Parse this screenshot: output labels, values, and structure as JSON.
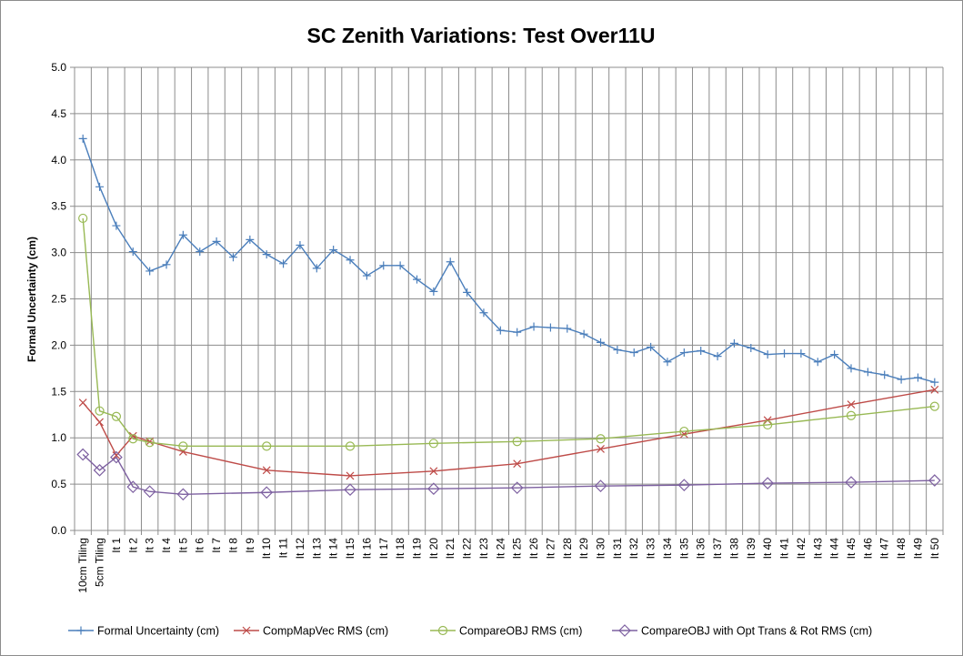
{
  "chart_data": {
    "type": "line",
    "title": "SC Zenith Variations: Test Over11U",
    "xlabel": "",
    "ylabel": "Formal Uncertainty (cm)",
    "ylim": [
      0,
      5
    ],
    "yticks": [
      "0.0",
      "0.5",
      "1.0",
      "1.5",
      "2.0",
      "2.5",
      "3.0",
      "3.5",
      "4.0",
      "4.5",
      "5.0"
    ],
    "grid": true,
    "legend_position": "bottom",
    "categories": [
      "10cm Tiling",
      "5cm Tiling",
      "It 1",
      "It 2",
      "It 3",
      "It 4",
      "It 5",
      "It 6",
      "It 7",
      "It 8",
      "It 9",
      "It 10",
      "It 11",
      "It 12",
      "It 13",
      "It 14",
      "It 15",
      "It 16",
      "It 17",
      "It 18",
      "It 19",
      "It 20",
      "It 21",
      "It 22",
      "It 23",
      "It 24",
      "It 25",
      "It 26",
      "It 27",
      "It 28",
      "It 29",
      "It 30",
      "It 31",
      "It 32",
      "It 33",
      "It 34",
      "It 35",
      "It 36",
      "It 37",
      "It 38",
      "It 39",
      "It 40",
      "It 41",
      "It 42",
      "It 43",
      "It 44",
      "It 45",
      "It 46",
      "It 47",
      "It 48",
      "It 49",
      "It 50"
    ],
    "series": [
      {
        "name": "Formal Uncertainty (cm)",
        "color": "#4a7ebb",
        "marker": "plus",
        "values": [
          4.23,
          3.71,
          3.29,
          3.01,
          2.8,
          2.87,
          3.19,
          3.01,
          3.12,
          2.95,
          3.14,
          2.98,
          2.88,
          3.08,
          2.83,
          3.03,
          2.92,
          2.75,
          2.86,
          2.86,
          2.71,
          2.58,
          2.9,
          2.57,
          2.35,
          2.16,
          2.14,
          2.2,
          2.19,
          2.18,
          2.12,
          2.03,
          1.95,
          1.92,
          1.98,
          1.82,
          1.92,
          1.94,
          1.88,
          2.02,
          1.97,
          1.9,
          1.91,
          1.91,
          1.82,
          1.9,
          1.75,
          1.71,
          1.68,
          1.63,
          1.65,
          1.6
        ]
      },
      {
        "name": "CompMapVec RMS (cm)",
        "color": "#be4b48",
        "marker": "x",
        "points": [
          [
            0,
            1.38
          ],
          [
            1,
            1.17
          ],
          [
            2,
            0.81
          ],
          [
            3,
            1.02
          ],
          [
            4,
            0.96
          ],
          [
            6,
            0.85
          ],
          [
            11,
            0.65
          ],
          [
            16,
            0.59
          ],
          [
            21,
            0.64
          ],
          [
            26,
            0.72
          ],
          [
            31,
            0.88
          ],
          [
            36,
            1.04
          ],
          [
            41,
            1.19
          ],
          [
            46,
            1.36
          ],
          [
            51,
            1.52
          ]
        ]
      },
      {
        "name": "CompareOBJ RMS (cm)",
        "color": "#98b954",
        "marker": "circle",
        "points": [
          [
            0,
            3.37
          ],
          [
            1,
            1.29
          ],
          [
            2,
            1.23
          ],
          [
            3,
            0.99
          ],
          [
            4,
            0.95
          ],
          [
            6,
            0.91
          ],
          [
            11,
            0.91
          ],
          [
            16,
            0.91
          ],
          [
            21,
            0.94
          ],
          [
            26,
            0.96
          ],
          [
            31,
            0.99
          ],
          [
            36,
            1.07
          ],
          [
            41,
            1.14
          ],
          [
            46,
            1.24
          ],
          [
            51,
            1.34
          ]
        ]
      },
      {
        "name": "CompareOBJ with Opt Trans & Rot RMS (cm)",
        "color": "#7d60a0",
        "marker": "diamond",
        "points": [
          [
            0,
            0.82
          ],
          [
            1,
            0.65
          ],
          [
            2,
            0.79
          ],
          [
            3,
            0.47
          ],
          [
            4,
            0.42
          ],
          [
            6,
            0.39
          ],
          [
            11,
            0.41
          ],
          [
            16,
            0.44
          ],
          [
            21,
            0.45
          ],
          [
            26,
            0.46
          ],
          [
            31,
            0.48
          ],
          [
            36,
            0.49
          ],
          [
            41,
            0.51
          ],
          [
            46,
            0.52
          ],
          [
            51,
            0.54
          ]
        ]
      }
    ]
  }
}
